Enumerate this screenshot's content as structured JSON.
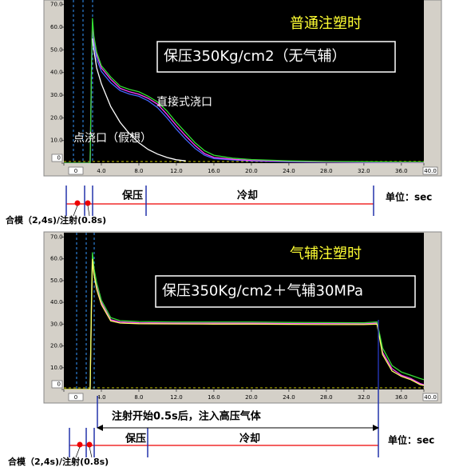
{
  "chart_data": [
    {
      "type": "line",
      "title": "普通注塑时",
      "subtitle": "保压350Kg/cm2（无气辅）",
      "annotations": [
        "直接式浇口",
        "点浇口（假想）"
      ],
      "x": [
        0,
        2.8,
        2.95,
        3.05,
        3.2,
        3.5,
        4,
        5,
        6,
        7,
        8,
        9,
        10,
        11,
        12,
        13,
        14,
        15,
        16,
        18,
        20,
        24,
        28,
        32,
        36,
        38.4
      ],
      "series": [
        {
          "color": "#4466ff",
          "values": [
            0,
            0,
            38,
            60,
            53,
            46,
            40.5,
            35.5,
            32,
            30.5,
            29.5,
            27.5,
            24.5,
            20,
            15,
            10.5,
            6.5,
            3.5,
            2,
            1.4,
            1,
            0.6,
            0.4,
            0.3,
            0.2,
            0.2
          ]
        },
        {
          "color": "#ff40ff",
          "values": [
            0,
            0,
            40,
            62,
            55,
            48,
            42,
            37,
            33,
            31.5,
            30.4,
            28.6,
            26,
            21.5,
            16.6,
            12,
            7.8,
            4.2,
            2.5,
            1.7,
            1.2,
            0.8,
            0.5,
            0.4,
            0.3,
            0.3
          ]
        },
        {
          "color": "#33dd33",
          "values": [
            0,
            0,
            42,
            64,
            56,
            49,
            43,
            38,
            34,
            32.5,
            31.5,
            29.5,
            27,
            23,
            18,
            13.5,
            9,
            5.5,
            3.5,
            2.2,
            1.6,
            1.0,
            0.7,
            0.6,
            0.5,
            0.5
          ]
        },
        {
          "color": "#ffffff",
          "values": [
            null,
            null,
            null,
            55,
            50,
            42,
            35,
            25,
            18,
            13,
            9,
            6,
            4,
            2.5,
            1.5,
            1,
            null,
            null,
            null,
            null,
            null,
            null,
            null,
            null,
            null,
            null
          ]
        }
      ],
      "xlim": [
        0,
        38.4
      ],
      "ylim": [
        0,
        72
      ],
      "xticks": [
        {
          "value": 0,
          "label": "0"
        },
        {
          "value": 4,
          "label": "4.0"
        },
        {
          "value": 8,
          "label": "8.0"
        },
        {
          "value": 12,
          "label": "12.0"
        },
        {
          "value": 16,
          "label": "16.0"
        },
        {
          "value": 20,
          "label": "20.0"
        },
        {
          "value": 24,
          "label": "24.0"
        },
        {
          "value": 28,
          "label": "28.0"
        },
        {
          "value": 32,
          "label": "32.0"
        },
        {
          "value": 36,
          "label": "36.0"
        },
        {
          "value": 40,
          "label": "40.0"
        }
      ],
      "yticks": [
        {
          "value": 0,
          "label": "0"
        },
        {
          "value": 10,
          "label": "10.0"
        },
        {
          "value": 20,
          "label": "20.0"
        },
        {
          "value": 30,
          "label": "30.0"
        },
        {
          "value": 40,
          "label": "40.0"
        },
        {
          "value": 50,
          "label": "50.0"
        },
        {
          "value": 60,
          "label": "60.0"
        },
        {
          "value": 70,
          "label": "70.0"
        }
      ],
      "timeline": {
        "phases": [
          "保压",
          "冷却"
        ],
        "unit": "单位：sec",
        "caption": "合模（2,4s)/注射(0.8s)"
      }
    },
    {
      "type": "line",
      "title": "气辅注塑时",
      "subtitle": "保压350Kg/cm2＋气辅30MPa",
      "annotations": [],
      "x": [
        0,
        2.8,
        2.95,
        3.05,
        3.2,
        3.5,
        4,
        5,
        6,
        8,
        12,
        16,
        20,
        24,
        28,
        32,
        33.4,
        34,
        35,
        36,
        37,
        38,
        38.4
      ],
      "series": [
        {
          "color": "#ff40ff",
          "values": [
            0,
            0,
            40,
            62,
            55,
            48,
            40,
            32,
            31,
            30.6,
            30.5,
            30.5,
            30.4,
            30.3,
            30.3,
            30.2,
            30.5,
            17,
            9.5,
            6.5,
            5,
            2.7,
            2.2
          ]
        },
        {
          "color": "#33dd33",
          "values": [
            0,
            0,
            42,
            63,
            56,
            49,
            41,
            33,
            31.6,
            31.2,
            31,
            31,
            31,
            30.8,
            30.7,
            30.6,
            31,
            19,
            11,
            8,
            6.5,
            5,
            4.5
          ]
        },
        {
          "color": "#ffff66",
          "values": [
            0,
            0,
            38,
            60,
            53,
            46,
            39,
            31.5,
            30.5,
            30.2,
            30.1,
            30,
            30,
            29.9,
            29.8,
            29.8,
            30,
            16,
            8.5,
            6,
            4.5,
            2.2,
            1.8
          ]
        }
      ],
      "xlim": [
        0,
        38.4
      ],
      "ylim": [
        0,
        72
      ],
      "xticks": [
        {
          "value": 0,
          "label": "0"
        },
        {
          "value": 4,
          "label": "4.0"
        },
        {
          "value": 8,
          "label": "8.0"
        },
        {
          "value": 12,
          "label": "12.0"
        },
        {
          "value": 16,
          "label": "16.0"
        },
        {
          "value": 20,
          "label": "20.0"
        },
        {
          "value": 24,
          "label": "24.0"
        },
        {
          "value": 28,
          "label": "28.0"
        },
        {
          "value": 32,
          "label": "32.0"
        },
        {
          "value": 36,
          "label": "36.0"
        },
        {
          "value": 40,
          "label": "40.0"
        }
      ],
      "yticks": [
        {
          "value": 0,
          "label": "0"
        },
        {
          "value": 10,
          "label": "10.0"
        },
        {
          "value": 20,
          "label": "20.0"
        },
        {
          "value": 30,
          "label": "30.0"
        },
        {
          "value": 40,
          "label": "40.0"
        },
        {
          "value": 50,
          "label": "50.0"
        },
        {
          "value": 60,
          "label": "60.0"
        },
        {
          "value": 70,
          "label": "70.0"
        }
      ],
      "timeline": {
        "phases": [
          "保压",
          "冷却"
        ],
        "unit": "单位：sec",
        "caption": "合模（2,4s)/注射(0.8s)",
        "note": "注射开始0.5s后，注入高压气体"
      }
    }
  ]
}
